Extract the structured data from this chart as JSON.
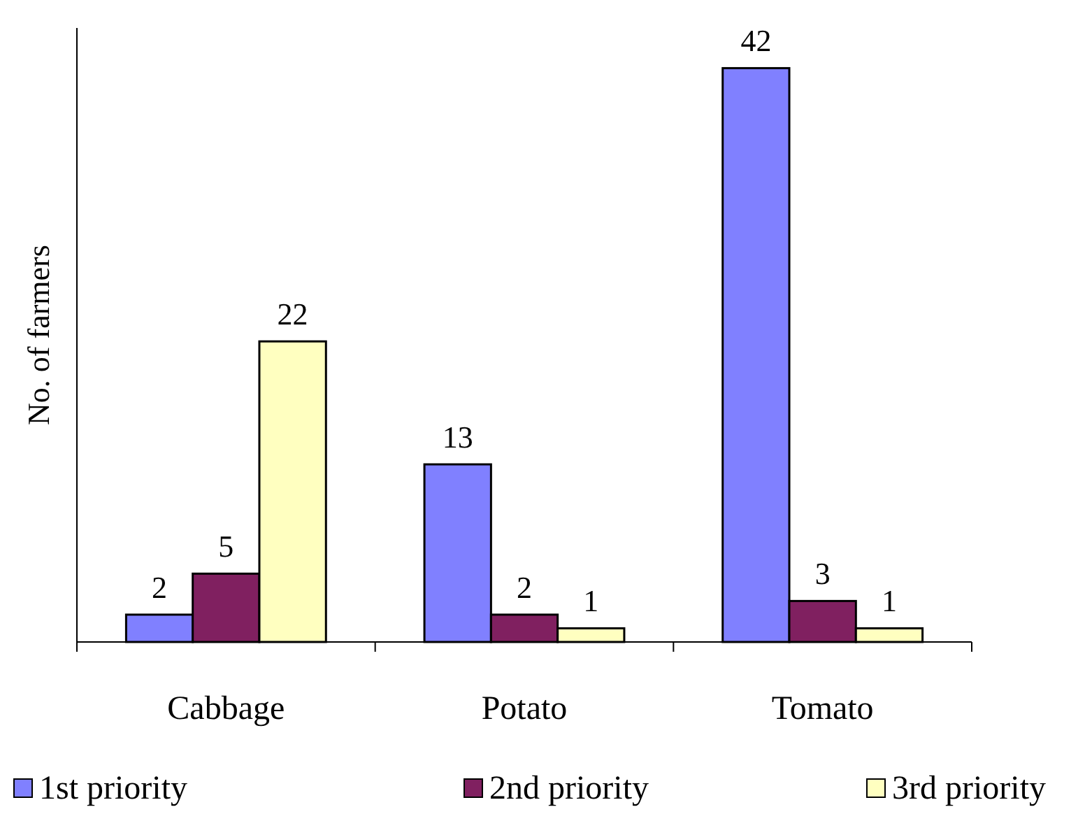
{
  "chart_data": {
    "type": "bar",
    "ylabel": "No. of farmers",
    "categories": [
      "Cabbage",
      "Potato",
      "Tomato"
    ],
    "series": [
      {
        "name": "1st priority",
        "color": "#8080ff",
        "values": [
          2,
          13,
          42
        ]
      },
      {
        "name": "2nd priority",
        "color": "#802060",
        "values": [
          5,
          2,
          3
        ]
      },
      {
        "name": "3rd priority",
        "color": "#ffffc0",
        "values": [
          22,
          1,
          1
        ]
      }
    ],
    "data_labels": true,
    "legend": "bottom"
  }
}
